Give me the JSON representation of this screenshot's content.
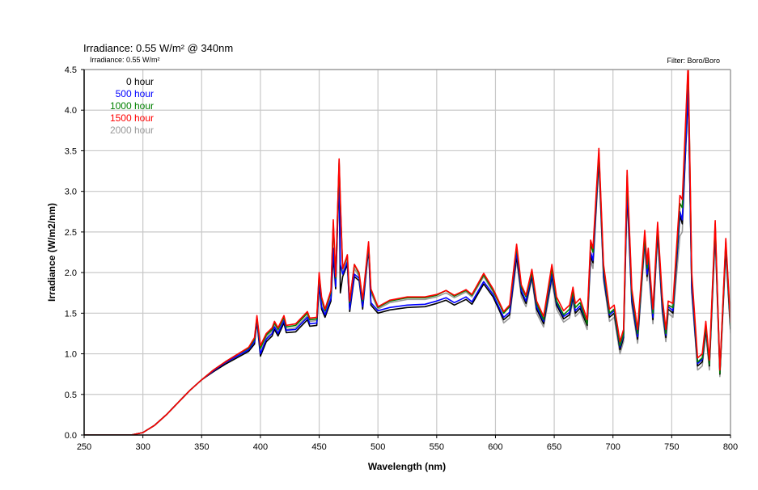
{
  "chart_data": {
    "type": "line",
    "title": "Irradiance: 0.55 W/m² @ 340nm",
    "subtitle": "Irradiance: 0.55 W/m²",
    "annotation": "Filter: Boro/Boro",
    "xlabel": "Wavelength (nm)",
    "ylabel": "Irradiance (W/m2/nm)",
    "xlim": [
      250,
      800
    ],
    "ylim": [
      0,
      4.5
    ],
    "xticks": [
      250,
      300,
      350,
      400,
      450,
      500,
      550,
      600,
      650,
      700,
      750,
      800
    ],
    "yticks": [
      "0.0",
      "0.5",
      "1.0",
      "1.5",
      "2.0",
      "2.5",
      "3.0",
      "3.5",
      "4.0",
      "4.5"
    ],
    "grid": true,
    "legend_position": "top-left",
    "x": [
      250,
      290,
      300,
      310,
      320,
      330,
      340,
      350,
      360,
      370,
      380,
      390,
      395,
      397,
      400,
      405,
      410,
      412,
      415,
      420,
      422,
      430,
      440,
      442,
      448,
      450,
      452,
      455,
      460,
      462,
      464,
      467,
      468,
      470,
      474,
      476,
      480,
      484,
      487,
      492,
      494,
      500,
      510,
      525,
      540,
      550,
      558,
      565,
      575,
      580,
      590,
      598,
      607,
      612,
      618,
      622,
      626,
      631,
      635,
      641,
      648,
      652,
      658,
      663,
      666,
      668,
      672,
      678,
      681,
      683,
      688,
      692,
      697,
      701,
      706,
      709,
      712,
      716,
      721,
      727,
      729,
      730,
      734,
      738,
      742,
      745,
      747,
      751,
      757,
      759,
      764,
      767,
      772,
      776,
      779,
      782,
      787,
      791,
      796,
      800
    ],
    "series": [
      {
        "name": "2000 hour",
        "color": "#999999",
        "values": [
          0,
          0,
          0.03,
          0.12,
          0.25,
          0.4,
          0.55,
          0.68,
          0.79,
          0.88,
          0.97,
          1.05,
          1.16,
          1.43,
          1.05,
          1.2,
          1.28,
          1.35,
          1.28,
          1.42,
          1.3,
          1.32,
          1.47,
          1.4,
          1.41,
          1.95,
          1.65,
          1.5,
          1.73,
          2.62,
          1.9,
          3.38,
          2.8,
          2.0,
          2.18,
          1.6,
          2.05,
          1.95,
          1.62,
          2.36,
          1.75,
          1.55,
          1.63,
          1.67,
          1.67,
          1.7,
          1.75,
          1.69,
          1.76,
          1.7,
          1.95,
          1.76,
          1.38,
          1.44,
          2.15,
          1.7,
          1.58,
          1.92,
          1.5,
          1.33,
          1.9,
          1.55,
          1.39,
          1.44,
          1.65,
          1.46,
          1.52,
          1.3,
          2.15,
          2.05,
          3.35,
          1.9,
          1.4,
          1.45,
          1.0,
          1.15,
          2.95,
          1.6,
          1.13,
          2.35,
          1.9,
          2.1,
          1.37,
          2.45,
          1.5,
          1.15,
          1.5,
          1.45,
          2.45,
          2.5,
          4.3,
          1.75,
          0.8,
          0.85,
          1.25,
          0.8,
          2.45,
          0.72,
          2.25,
          1.25
        ]
      },
      {
        "name": "0 hour",
        "color": "#000000",
        "values": [
          0,
          0,
          0.03,
          0.12,
          0.25,
          0.4,
          0.55,
          0.68,
          0.78,
          0.87,
          0.95,
          1.03,
          1.12,
          1.4,
          0.97,
          1.15,
          1.22,
          1.3,
          1.22,
          1.38,
          1.26,
          1.27,
          1.42,
          1.34,
          1.35,
          1.85,
          1.55,
          1.45,
          1.65,
          2.2,
          1.8,
          3.2,
          1.75,
          1.95,
          2.1,
          1.52,
          1.95,
          1.9,
          1.55,
          2.3,
          1.6,
          1.5,
          1.54,
          1.57,
          1.58,
          1.62,
          1.66,
          1.6,
          1.67,
          1.61,
          1.86,
          1.7,
          1.42,
          1.48,
          2.2,
          1.75,
          1.62,
          1.95,
          1.55,
          1.37,
          1.95,
          1.6,
          1.43,
          1.48,
          1.7,
          1.5,
          1.56,
          1.35,
          2.2,
          2.12,
          3.4,
          1.95,
          1.45,
          1.5,
          1.05,
          1.2,
          3.0,
          1.65,
          1.18,
          2.4,
          1.95,
          2.15,
          1.42,
          2.5,
          1.55,
          1.2,
          1.55,
          1.5,
          2.7,
          2.6,
          4.2,
          1.8,
          0.85,
          0.9,
          1.3,
          0.85,
          2.5,
          0.75,
          2.3,
          1.3
        ]
      },
      {
        "name": "500 hour",
        "color": "#0000ff",
        "values": [
          0,
          0,
          0.03,
          0.12,
          0.25,
          0.4,
          0.55,
          0.68,
          0.79,
          0.89,
          0.97,
          1.05,
          1.15,
          1.42,
          1.0,
          1.18,
          1.25,
          1.33,
          1.25,
          1.41,
          1.29,
          1.3,
          1.45,
          1.37,
          1.38,
          1.88,
          1.58,
          1.48,
          1.68,
          2.3,
          1.83,
          3.25,
          2.1,
          1.98,
          2.13,
          1.55,
          1.98,
          1.93,
          1.58,
          2.33,
          1.63,
          1.53,
          1.57,
          1.6,
          1.61,
          1.65,
          1.69,
          1.63,
          1.7,
          1.64,
          1.89,
          1.73,
          1.45,
          1.51,
          2.25,
          1.78,
          1.65,
          1.98,
          1.58,
          1.4,
          1.98,
          1.63,
          1.46,
          1.51,
          1.73,
          1.53,
          1.59,
          1.38,
          2.25,
          2.15,
          3.45,
          1.98,
          1.48,
          1.53,
          1.08,
          1.23,
          3.05,
          1.68,
          1.21,
          2.43,
          1.98,
          2.18,
          1.45,
          2.53,
          1.58,
          1.23,
          1.58,
          1.53,
          2.75,
          2.65,
          4.25,
          1.83,
          0.88,
          0.93,
          1.33,
          0.88,
          2.55,
          0.78,
          2.35,
          1.33
        ]
      },
      {
        "name": "1000 hour",
        "color": "#008000",
        "values": [
          0,
          0,
          0.03,
          0.12,
          0.25,
          0.4,
          0.55,
          0.68,
          0.8,
          0.9,
          0.99,
          1.07,
          1.18,
          1.45,
          1.07,
          1.23,
          1.3,
          1.38,
          1.3,
          1.45,
          1.33,
          1.35,
          1.5,
          1.42,
          1.43,
          1.97,
          1.68,
          1.53,
          1.76,
          2.6,
          1.93,
          3.35,
          2.85,
          2.05,
          2.2,
          1.63,
          2.1,
          1.98,
          1.65,
          2.35,
          1.78,
          1.57,
          1.65,
          1.69,
          1.69,
          1.72,
          1.78,
          1.71,
          1.78,
          1.72,
          1.97,
          1.78,
          1.5,
          1.58,
          2.32,
          1.82,
          1.7,
          2.0,
          1.62,
          1.42,
          2.05,
          1.65,
          1.48,
          1.55,
          1.77,
          1.57,
          1.63,
          1.37,
          2.35,
          2.25,
          3.48,
          2.05,
          1.5,
          1.55,
          1.1,
          1.25,
          3.2,
          1.75,
          1.25,
          2.45,
          2.05,
          2.25,
          1.5,
          2.57,
          1.65,
          1.25,
          1.6,
          1.57,
          2.85,
          2.8,
          4.55,
          1.95,
          0.9,
          0.95,
          1.35,
          0.87,
          2.6,
          0.76,
          2.38,
          1.33
        ]
      },
      {
        "name": "1500 hour",
        "color": "#ff0000",
        "values": [
          0,
          0,
          0.03,
          0.12,
          0.25,
          0.4,
          0.55,
          0.68,
          0.8,
          0.9,
          0.99,
          1.08,
          1.2,
          1.47,
          1.1,
          1.25,
          1.32,
          1.4,
          1.32,
          1.47,
          1.35,
          1.37,
          1.52,
          1.44,
          1.45,
          2.0,
          1.7,
          1.55,
          1.78,
          2.65,
          1.95,
          3.4,
          2.9,
          2.05,
          2.22,
          1.65,
          2.1,
          2.0,
          1.67,
          2.38,
          1.8,
          1.58,
          1.66,
          1.7,
          1.7,
          1.73,
          1.78,
          1.72,
          1.79,
          1.73,
          1.99,
          1.8,
          1.52,
          1.6,
          2.35,
          1.85,
          1.72,
          2.04,
          1.65,
          1.46,
          2.1,
          1.7,
          1.53,
          1.6,
          1.82,
          1.62,
          1.68,
          1.42,
          2.4,
          2.3,
          3.53,
          2.1,
          1.55,
          1.6,
          1.15,
          1.3,
          3.26,
          1.8,
          1.3,
          2.52,
          2.1,
          2.3,
          1.55,
          2.62,
          1.7,
          1.3,
          1.65,
          1.62,
          2.95,
          2.9,
          4.6,
          2.0,
          0.95,
          1.0,
          1.4,
          0.92,
          2.64,
          0.8,
          2.42,
          1.38
        ]
      }
    ],
    "legend": [
      {
        "label": "0 hour",
        "color": "#000000"
      },
      {
        "label": "500 hour",
        "color": "#0000ff"
      },
      {
        "label": "1000 hour",
        "color": "#008000"
      },
      {
        "label": "1500 hour",
        "color": "#ff0000"
      },
      {
        "label": "2000 hour",
        "color": "#999999"
      }
    ]
  }
}
